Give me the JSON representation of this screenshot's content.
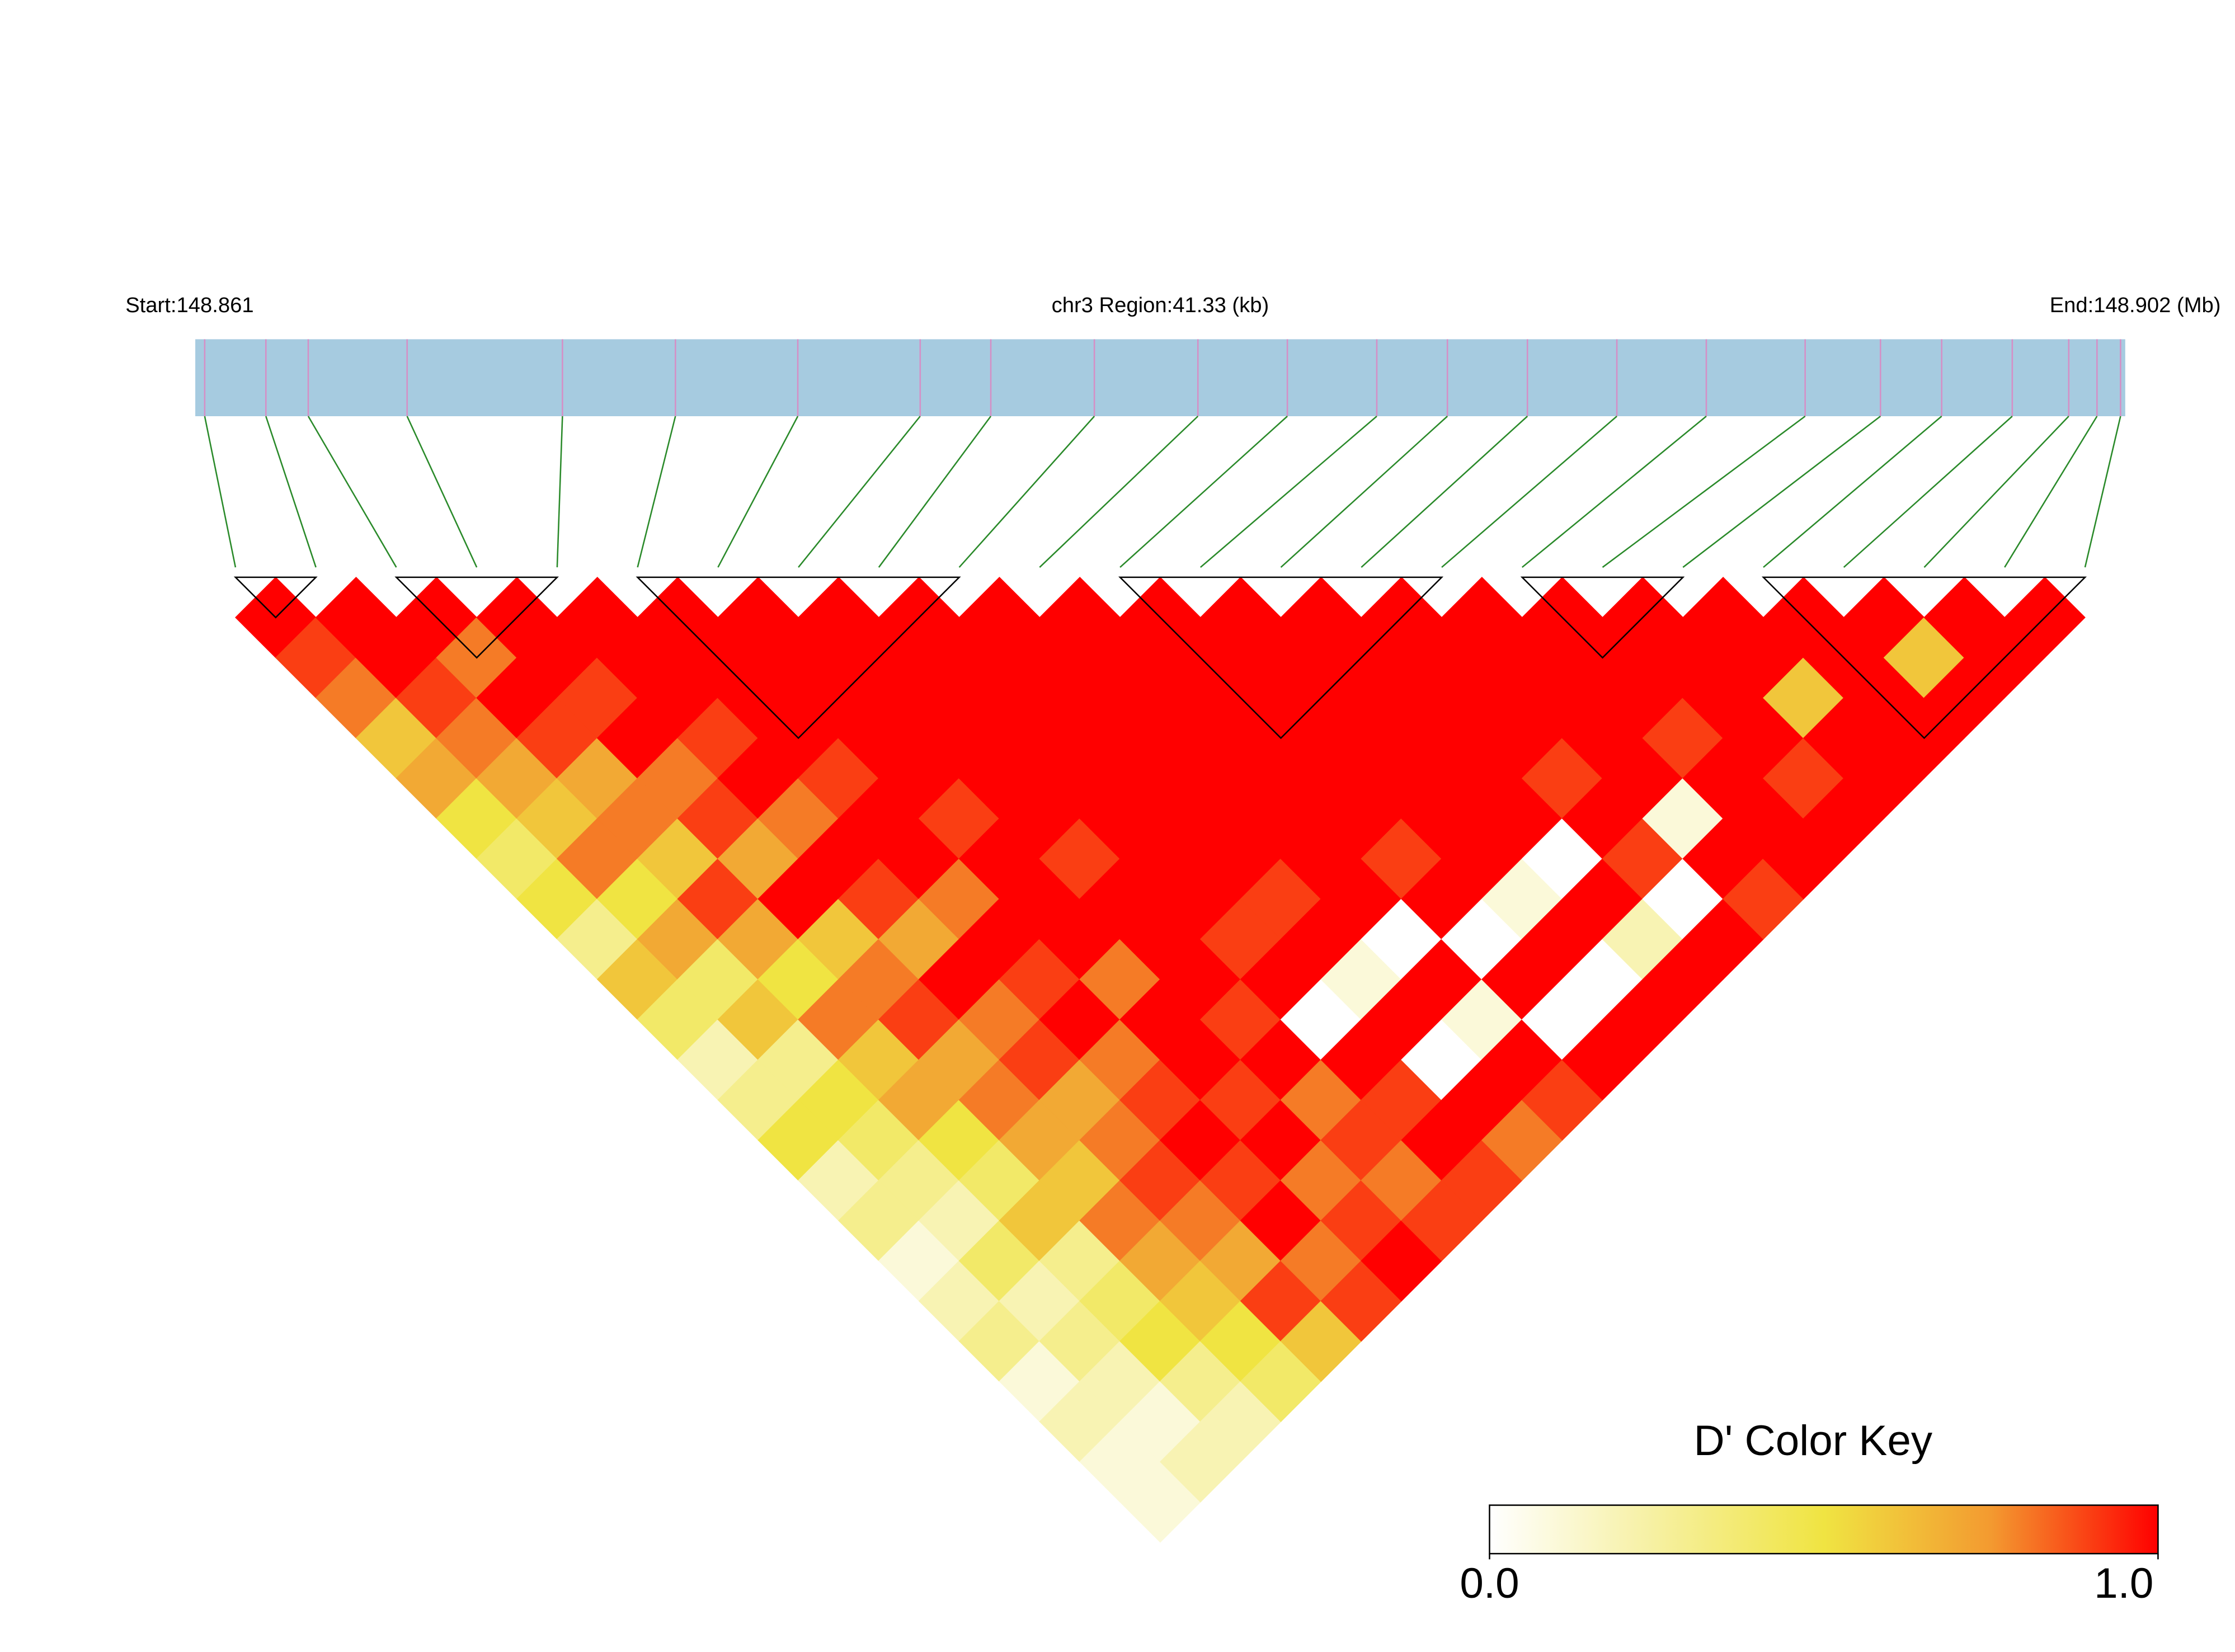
{
  "chart_data": {
    "type": "ld-heatmap",
    "start_label": "Start:148.861",
    "region_label": "chr3 Region:41.33 (kb)",
    "end_label": "End:148.902 (Mb)",
    "xlim": [
      148.861,
      148.902
    ],
    "positions": [
      148.8612,
      148.8625,
      148.8634,
      148.8655,
      148.8688,
      148.8712,
      148.8738,
      148.8764,
      148.8779,
      148.8801,
      148.8823,
      148.8842,
      148.8861,
      148.8876,
      148.8893,
      148.8912,
      148.8931,
      148.8952,
      148.8968,
      148.8981,
      148.8996,
      148.9008,
      148.9014,
      148.9019
    ],
    "ld": [
      [
        1,
        0.9,
        0.8,
        0.6,
        0.7,
        0.5,
        0.4,
        0.5,
        0.3,
        0.6,
        0.4,
        0.2,
        0.3,
        0.5,
        0.2,
        0.3,
        0.1,
        0.2,
        0.3,
        0.1,
        0.2,
        0.1,
        0.1
      ],
      [
        1,
        1,
        0.9,
        0.8,
        0.7,
        0.6,
        0.8,
        0.5,
        0.7,
        0.4,
        0.6,
        0.3,
        0.5,
        0.4,
        0.3,
        0.2,
        0.4,
        0.2,
        0.3,
        0.2,
        0.1,
        0.2
      ],
      [
        1,
        0.8,
        1,
        0.9,
        0.7,
        0.8,
        0.6,
        0.9,
        0.7,
        0.5,
        0.8,
        0.6,
        0.7,
        0.5,
        0.4,
        0.6,
        0.3,
        0.4,
        0.5,
        0.3,
        0.2
      ],
      [
        1,
        1,
        0.9,
        1,
        0.8,
        0.9,
        0.7,
        1,
        0.6,
        0.8,
        0.9,
        0.7,
        0.8,
        0.7,
        0.6,
        0.8,
        0.7,
        0.6,
        0.5,
        0.4
      ],
      [
        1,
        1,
        1,
        0.9,
        1,
        0.8,
        1,
        0.9,
        0.7,
        1,
        0.8,
        0.9,
        0.7,
        0.8,
        0.9,
        0.8,
        0.7,
        0.9,
        0.6
      ],
      [
        1,
        1,
        1,
        1,
        0.9,
        1,
        1,
        0.8,
        1,
        0.9,
        1,
        0.8,
        0.9,
        1,
        0.9,
        1,
        0.8,
        0.9
      ],
      [
        1,
        1,
        1,
        1,
        1,
        0.9,
        1,
        1,
        1,
        0.8,
        1,
        1,
        0.9,
        1,
        0.8,
        0.9,
        1
      ],
      [
        1,
        1,
        1,
        1,
        1,
        1,
        0.9,
        1,
        1,
        1,
        0.9,
        1,
        0.8,
        0.9,
        0.8,
        0.9
      ],
      [
        1,
        1,
        1,
        1,
        1,
        1,
        1,
        1,
        0.9,
        1,
        0,
        1,
        0.9,
        1,
        0.9
      ],
      [
        1,
        1,
        1,
        1,
        1,
        1,
        1,
        0.9,
        1,
        0.1,
        1,
        0,
        1,
        0.8
      ],
      [
        1,
        1,
        1,
        1,
        1,
        1,
        1,
        1,
        0,
        1,
        0.1,
        1,
        0.9
      ],
      [
        1,
        1,
        1,
        1,
        1,
        1,
        0.9,
        1,
        0,
        1,
        0,
        1
      ],
      [
        1,
        1,
        1,
        1,
        1,
        1,
        1,
        0.1,
        1,
        0,
        1
      ],
      [
        1,
        1,
        1,
        1,
        1,
        1,
        0,
        1,
        0.2,
        1
      ],
      [
        1,
        1,
        1,
        1,
        0.9,
        1,
        0.9,
        0,
        1
      ],
      [
        1,
        1,
        1,
        1,
        1,
        0.1,
        1,
        0.9
      ],
      [
        1,
        1,
        1,
        0.9,
        1,
        1,
        1
      ],
      [
        1,
        1,
        1,
        1,
        0.9,
        1
      ],
      [
        1,
        1,
        0.6,
        1,
        1
      ],
      [
        1,
        1,
        1,
        1
      ],
      [
        1,
        0.6,
        1
      ],
      [
        1,
        1
      ],
      [
        1
      ]
    ],
    "blocks": [
      [
        0,
        1
      ],
      [
        2,
        4
      ],
      [
        5,
        9
      ],
      [
        11,
        15
      ],
      [
        16,
        18
      ],
      [
        19,
        23
      ]
    ],
    "colors": [
      "#ffffff",
      "#f6f0a0",
      "#f0e442",
      "#f39a30",
      "#ff0000"
    ],
    "key_title": "D' Color Key",
    "clim": [
      0,
      1
    ],
    "cticks": [
      {
        "value": 0,
        "label": "0.0"
      },
      {
        "value": 1,
        "label": "1.0"
      }
    ]
  }
}
